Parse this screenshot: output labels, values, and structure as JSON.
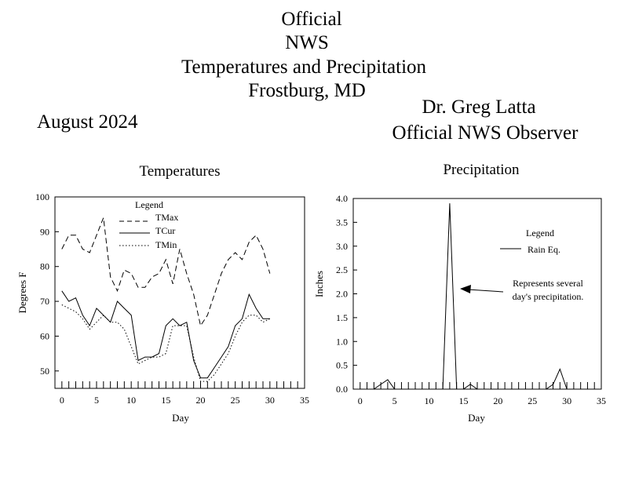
{
  "header": {
    "line1": "Official",
    "line2": "NWS",
    "line3": "Temperatures and Precipitation",
    "line4": "Frostburg, MD",
    "month": "August 2024",
    "observer": "Dr. Greg Latta",
    "observer_role": "Official NWS Observer"
  },
  "chart_data": [
    {
      "type": "line",
      "title": "Temperatures",
      "xlabel": "Day",
      "ylabel": "Degrees F",
      "xlim": [
        -1,
        35
      ],
      "ylim": [
        45,
        100
      ],
      "xticks": [
        0,
        5,
        10,
        15,
        20,
        25,
        30,
        35
      ],
      "yticks": [
        50,
        60,
        70,
        80,
        90,
        100
      ],
      "legend": {
        "title": "Legend",
        "position": "top-center"
      },
      "series": [
        {
          "name": "TMax",
          "style": "dashed",
          "x": [
            0,
            1,
            2,
            3,
            4,
            5,
            6,
            7,
            8,
            9,
            10,
            11,
            12,
            13,
            14,
            15,
            16,
            17,
            18,
            19,
            20,
            21,
            22,
            23,
            24,
            25,
            26,
            27,
            28,
            29,
            30
          ],
          "y": [
            85,
            89,
            89,
            85,
            84,
            89,
            94,
            77,
            73,
            79,
            78,
            74,
            74,
            77,
            78,
            82,
            75,
            85,
            78,
            72,
            63,
            66,
            72,
            78,
            82,
            84,
            82,
            87,
            89,
            85,
            78
          ]
        },
        {
          "name": "TCur",
          "style": "solid",
          "x": [
            0,
            1,
            2,
            3,
            4,
            5,
            6,
            7,
            8,
            9,
            10,
            11,
            12,
            13,
            14,
            15,
            16,
            17,
            18,
            19,
            20,
            21,
            22,
            23,
            24,
            25,
            26,
            27,
            28,
            29,
            30
          ],
          "y": [
            73,
            70,
            71,
            66,
            63,
            68,
            66,
            64,
            70,
            68,
            66,
            53,
            54,
            54,
            55,
            63,
            65,
            63,
            64,
            53,
            48,
            48,
            51,
            54,
            57,
            63,
            65,
            72,
            68,
            65,
            65
          ]
        },
        {
          "name": "TMin",
          "style": "dotted",
          "x": [
            0,
            1,
            2,
            3,
            4,
            5,
            6,
            7,
            8,
            9,
            10,
            11,
            12,
            13,
            14,
            15,
            16,
            17,
            18,
            19,
            20,
            21,
            22,
            23,
            24,
            25,
            26,
            27,
            28,
            29,
            30
          ],
          "y": [
            69,
            68,
            67,
            65,
            62,
            64,
            66,
            64,
            64,
            62,
            57,
            52,
            53,
            54,
            54,
            55,
            63,
            63,
            63,
            54,
            47,
            47,
            49,
            52,
            55,
            60,
            64,
            66,
            66,
            64,
            65
          ]
        }
      ]
    },
    {
      "type": "line",
      "title": "Precipitation",
      "xlabel": "Day",
      "ylabel": "Inches",
      "xlim": [
        -1,
        35
      ],
      "ylim": [
        0,
        4
      ],
      "xticks": [
        0,
        5,
        10,
        15,
        20,
        25,
        30,
        35
      ],
      "yticks": [
        0.0,
        0.5,
        1.0,
        1.5,
        2.0,
        2.5,
        3.0,
        3.5,
        4.0
      ],
      "legend": {
        "title": "Legend",
        "position": "top-right"
      },
      "series": [
        {
          "name": "Rain Eq.",
          "style": "solid",
          "x": [
            0,
            1,
            2,
            3,
            4,
            5,
            6,
            7,
            8,
            9,
            10,
            11,
            12,
            13,
            14,
            15,
            16,
            17,
            18,
            19,
            20,
            21,
            22,
            23,
            24,
            25,
            26,
            27,
            28,
            29,
            30
          ],
          "y": [
            0,
            0,
            0,
            0.1,
            0.2,
            0,
            0,
            0,
            0,
            0,
            0,
            0,
            0,
            3.9,
            0,
            0,
            0.1,
            0,
            0,
            0,
            0,
            0,
            0,
            0,
            0,
            0,
            0,
            0,
            0.1,
            0.42,
            0
          ]
        }
      ],
      "annotation": {
        "line1": "Represents several",
        "line2": "day's precipitation.",
        "points_to_day": 13
      }
    }
  ]
}
